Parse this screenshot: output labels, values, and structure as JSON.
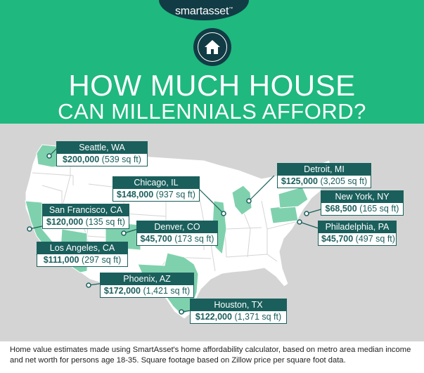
{
  "brand": {
    "name": "smartasset",
    "mark": "™"
  },
  "title": {
    "line1": "HOW MUCH HOUSE",
    "line2": "CAN MILLENNIALS AFFORD?"
  },
  "colors": {
    "header": "#1fb87f",
    "brand_dark": "#113c45",
    "label_teal": "#1a5f5c",
    "highlight_state": "#7fd1ad",
    "map_bg": "#d4d4d4"
  },
  "cities": [
    {
      "city": "Seattle, WA",
      "price": "$200,000",
      "sqft": "(539 sq ft)"
    },
    {
      "city": "Chicago, IL",
      "price": "$148,000",
      "sqft": "(937 sq ft)"
    },
    {
      "city": "Detroit, MI",
      "price": "$125,000",
      "sqft": "(3,205 sq ft)"
    },
    {
      "city": "New York, NY",
      "price": "$68,500",
      "sqft": "(165 sq ft)"
    },
    {
      "city": "San Francisco, CA",
      "price": "$120,000",
      "sqft": "(135 sq ft)"
    },
    {
      "city": "Denver, CO",
      "price": "$45,700",
      "sqft": "(173 sq ft)"
    },
    {
      "city": "Philadelphia, PA",
      "price": "$45,700",
      "sqft": "(497 sq ft)"
    },
    {
      "city": "Los Angeles, CA",
      "price": "$111,000",
      "sqft": "(297 sq ft)"
    },
    {
      "city": "Phoenix, AZ",
      "price": "$172,000",
      "sqft": "(1,421 sq ft)"
    },
    {
      "city": "Houston, TX",
      "price": "$122,000",
      "sqft": "(1,371 sq ft)"
    }
  ],
  "footnote": "Home value estimates made using SmartAsset's home affordability calculator, based on metro area median income and net worth for persons age 18-35. Square footage based on Zillow price per square foot data."
}
